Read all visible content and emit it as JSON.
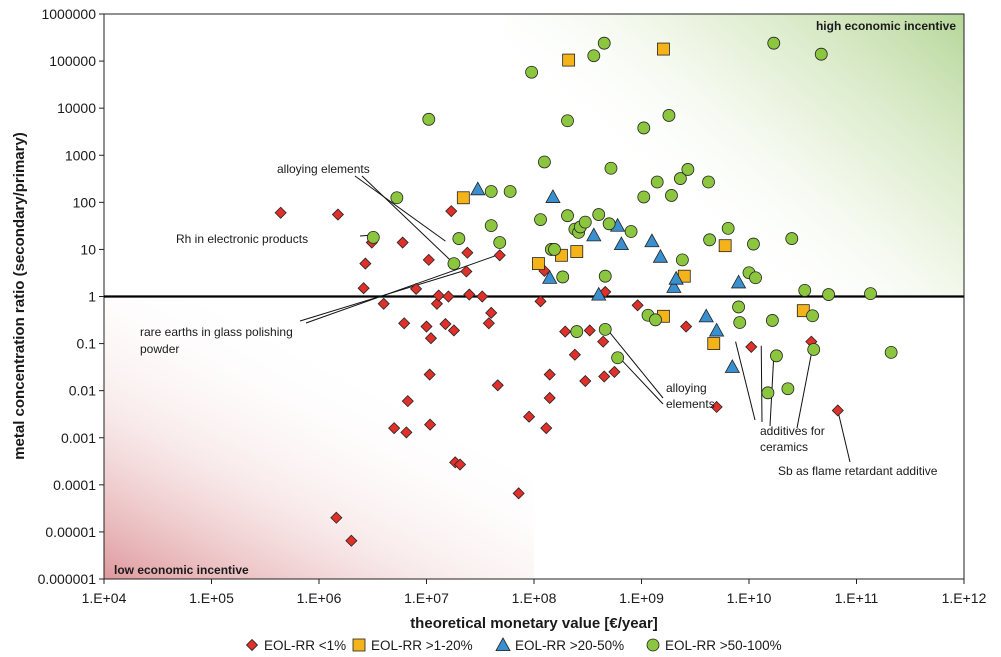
{
  "chart_data": {
    "type": "scatter",
    "xlabel": "theoretical monetary value [€/year]",
    "ylabel": "metal concentration ratio (secondary/primary)",
    "xscale": "log",
    "yscale": "log",
    "xlim": [
      10000,
      1000000000000
    ],
    "ylim": [
      1e-06,
      1000000
    ],
    "x_ticks": [
      "1.E+04",
      "1.E+05",
      "1.E+06",
      "1.E+07",
      "1.E+08",
      "1.E+09",
      "1.E+10",
      "1.E+11",
      "1.E+12"
    ],
    "y_ticks": [
      "0.000001",
      "0.00001",
      "0.0001",
      "0.001",
      "0.01",
      "0.1",
      "1",
      "10",
      "100",
      "1000",
      "10000",
      "100000",
      "1000000"
    ],
    "reference_line_y": 1,
    "grid": false,
    "legend_position": "bottom",
    "corner_labels": {
      "top_right": "high economic incentive",
      "bottom_left": "low economic incentive"
    },
    "annotations": [
      {
        "text": "alloying elements",
        "points": [
          [
            15000000,
            15
          ],
          [
            18000000,
            5
          ]
        ]
      },
      {
        "text": "Rh in electronic products",
        "points": [
          [
            3000000,
            20
          ]
        ]
      },
      {
        "text": "rare earths in glass polishing powder",
        "points": [
          [
            22000000,
            3.5
          ],
          [
            45000000,
            7.5
          ]
        ]
      },
      {
        "text": "alloying elements",
        "points": [
          [
            480000000,
            0.2
          ],
          [
            600000000,
            0.055
          ]
        ]
      },
      {
        "text": "additives for ceramics",
        "points": [
          [
            7500000000,
            0.11
          ],
          [
            13000000000,
            0.09
          ],
          [
            17000000000,
            0.055
          ],
          [
            40000000000,
            0.11
          ]
        ]
      },
      {
        "text": "Sb as flame retardant additive",
        "points": [
          [
            67000000000,
            0.0038
          ]
        ]
      }
    ],
    "series": [
      {
        "name": "EOL-RR <1%",
        "marker": "diamond",
        "color": "#e0302a",
        "points": [
          [
            440000,
            60
          ],
          [
            1500000,
            55
          ],
          [
            2000000,
            6.5e-06
          ],
          [
            1450000,
            2e-05
          ],
          [
            2600000,
            1.5
          ],
          [
            2700000,
            5
          ],
          [
            3100000,
            14
          ],
          [
            4000000,
            0.7
          ],
          [
            5000000,
            0.0016
          ],
          [
            6000000,
            14
          ],
          [
            6200000,
            0.27
          ],
          [
            6500000,
            0.0013
          ],
          [
            6700000,
            0.006
          ],
          [
            8000000,
            1.45
          ],
          [
            10000000,
            0.23
          ],
          [
            10500000,
            6
          ],
          [
            10700000,
            0.022
          ],
          [
            10800000,
            0.0019
          ],
          [
            11000000,
            0.13
          ],
          [
            12500000,
            0.7
          ],
          [
            13000000,
            1.05
          ],
          [
            15000000,
            0.26
          ],
          [
            16000000,
            1.0
          ],
          [
            17000000,
            65
          ],
          [
            18000000,
            0.19
          ],
          [
            18500000,
            0.0003
          ],
          [
            20500000,
            0.00027
          ],
          [
            23500000,
            3.4
          ],
          [
            24000000,
            8.5
          ],
          [
            25000000,
            1.1
          ],
          [
            33000000,
            1.0
          ],
          [
            38000000,
            0.27
          ],
          [
            40000000,
            0.45
          ],
          [
            46000000,
            0.013
          ],
          [
            48000000,
            7.5
          ],
          [
            72000000,
            6.6e-05
          ],
          [
            90000000,
            0.0028
          ],
          [
            115000000,
            0.79
          ],
          [
            125000000,
            3.5
          ],
          [
            130000000,
            0.0016
          ],
          [
            140000000,
            0.007
          ],
          [
            140000000,
            0.022
          ],
          [
            195000000,
            0.18
          ],
          [
            240000000,
            0.058
          ],
          [
            300000000,
            0.016
          ],
          [
            330000000,
            0.19
          ],
          [
            440000000,
            0.11
          ],
          [
            450000000,
            0.02
          ],
          [
            460000000,
            1.25
          ],
          [
            560000000,
            0.025
          ],
          [
            920000000,
            0.65
          ],
          [
            2600000000,
            0.23
          ],
          [
            5000000000,
            0.0045
          ],
          [
            10500000000,
            0.085
          ],
          [
            38000000000,
            0.11
          ],
          [
            67000000000,
            0.0038
          ]
        ]
      },
      {
        "name": "EOL-RR >1-20%",
        "marker": "square",
        "color": "#f5b31a",
        "points": [
          [
            22000000,
            125
          ],
          [
            110000000,
            5
          ],
          [
            180000000,
            7.5
          ],
          [
            210000000,
            105000
          ],
          [
            250000000,
            9
          ],
          [
            1600000000,
            180000
          ],
          [
            2500000000,
            2.7
          ],
          [
            1600000000,
            0.38
          ],
          [
            4700000000,
            0.1
          ],
          [
            6000000000,
            12
          ],
          [
            32000000000,
            0.5
          ]
        ]
      },
      {
        "name": "EOL-RR >20-50%",
        "marker": "triangle",
        "color": "#3a8fcf",
        "points": [
          [
            30000000,
            190
          ],
          [
            140000000,
            2.5
          ],
          [
            150000000,
            130
          ],
          [
            360000000,
            20
          ],
          [
            400000000,
            1.1
          ],
          [
            600000000,
            32
          ],
          [
            650000000,
            13
          ],
          [
            1250000000,
            15
          ],
          [
            1500000000,
            7
          ],
          [
            2000000000,
            1.6
          ],
          [
            2100000000,
            2.4
          ],
          [
            4000000000,
            0.38
          ],
          [
            5000000000,
            0.19
          ],
          [
            7000000000,
            0.032
          ],
          [
            8000000000,
            2
          ]
        ]
      },
      {
        "name": "EOL-RR >50-100%",
        "marker": "circle",
        "color": "#8cc63f",
        "points": [
          [
            10500000,
            5800
          ],
          [
            5300000,
            125
          ],
          [
            3200000,
            18
          ],
          [
            18000000,
            5
          ],
          [
            20000000,
            17
          ],
          [
            40000000,
            170
          ],
          [
            40000000,
            32
          ],
          [
            48000000,
            14
          ],
          [
            60000000,
            170
          ],
          [
            95000000,
            58000
          ],
          [
            115000000,
            43
          ],
          [
            125000000,
            720
          ],
          [
            145000000,
            10
          ],
          [
            155000000,
            10
          ],
          [
            185000000,
            2.6
          ],
          [
            205000000,
            5400
          ],
          [
            205000000,
            52
          ],
          [
            240000000,
            27
          ],
          [
            250000000,
            0.18
          ],
          [
            260000000,
            23
          ],
          [
            270000000,
            30
          ],
          [
            300000000,
            38
          ],
          [
            360000000,
            130000
          ],
          [
            400000000,
            55
          ],
          [
            450000000,
            240000
          ],
          [
            460000000,
            0.2
          ],
          [
            460000000,
            2.7
          ],
          [
            500000000,
            35
          ],
          [
            520000000,
            530
          ],
          [
            600000000,
            0.05
          ],
          [
            800000000,
            24
          ],
          [
            1050000000,
            3800
          ],
          [
            1150000000,
            0.4
          ],
          [
            1050000000,
            130
          ],
          [
            1350000000,
            0.32
          ],
          [
            1400000000,
            270
          ],
          [
            1800000000,
            7000
          ],
          [
            1900000000,
            140
          ],
          [
            2300000000,
            320
          ],
          [
            2400000000,
            6
          ],
          [
            2700000000,
            500
          ],
          [
            4200000000,
            270
          ],
          [
            4300000000,
            16
          ],
          [
            6400000000,
            28
          ],
          [
            8000000000,
            0.6
          ],
          [
            8200000000,
            0.28
          ],
          [
            10000000000,
            3.2
          ],
          [
            11000000000,
            13
          ],
          [
            11500000000,
            2.5
          ],
          [
            15000000000,
            0.009
          ],
          [
            16500000000,
            0.31
          ],
          [
            17000000000,
            240000
          ],
          [
            18000000000,
            0.055
          ],
          [
            23000000000,
            0.011
          ],
          [
            25000000000,
            17
          ],
          [
            33000000000,
            1.35
          ],
          [
            39000000000,
            0.39
          ],
          [
            40000000000,
            0.075
          ],
          [
            47000000000,
            140000
          ],
          [
            55000000000,
            1.1
          ],
          [
            135000000000,
            1.15
          ],
          [
            210000000000,
            0.065
          ]
        ]
      }
    ]
  }
}
